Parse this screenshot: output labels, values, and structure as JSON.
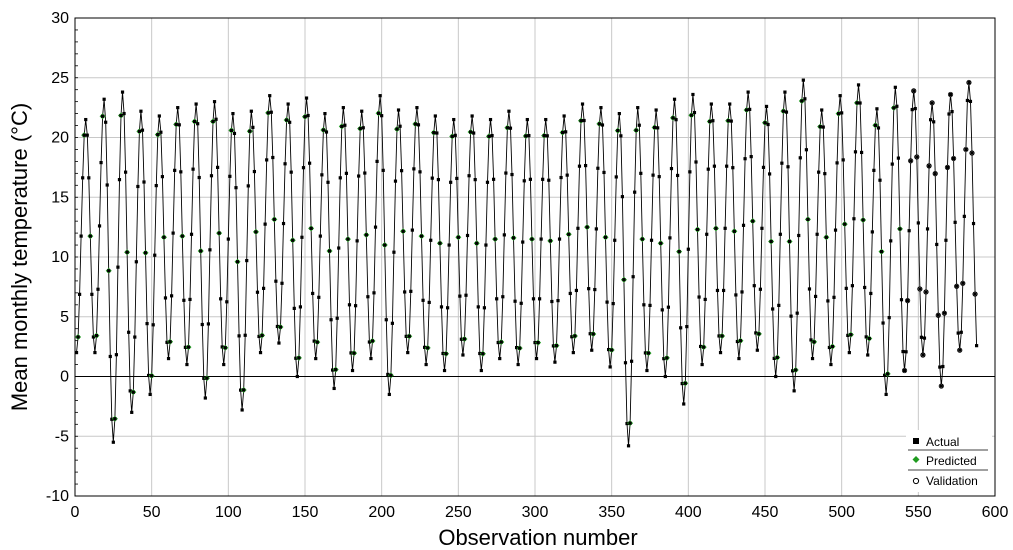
{
  "chart_data": {
    "type": "line",
    "title": "",
    "xlabel": "Observation number",
    "ylabel": "Mean monthly temperature (°C)",
    "xlim": [
      0,
      600
    ],
    "ylim": [
      -10,
      30
    ],
    "x_ticks": [
      0,
      50,
      100,
      150,
      200,
      250,
      300,
      350,
      400,
      450,
      500,
      550,
      600
    ],
    "y_ticks": [
      -10,
      -5,
      0,
      5,
      10,
      15,
      20,
      25,
      30
    ],
    "grid": true,
    "zero_line": true,
    "legend_position": "bottom-right",
    "legend": [
      "Actual",
      "Predicted",
      "Validation"
    ],
    "series_style": [
      {
        "name": "Actual",
        "marker": "filled-square",
        "color": "#000000"
      },
      {
        "name": "Predicted",
        "marker": "filled-diamond",
        "color": "#1f9b1f"
      },
      {
        "name": "Validation",
        "marker": "open-circle",
        "color": "#000000"
      }
    ],
    "predicted_end": 540,
    "series": {
      "cycle_length": 12,
      "start_observation": 1,
      "yearly_max": [
        21.5,
        23.2,
        23.8,
        22.2,
        21.8,
        22.5,
        22.8,
        23.0,
        22.0,
        22.2,
        23.5,
        22.8,
        23.3,
        22.0,
        22.5,
        22.2,
        23.5,
        22.3,
        22.5,
        21.8,
        21.5,
        21.8,
        21.5,
        22.2,
        21.5,
        21.5,
        21.8,
        22.8,
        22.5,
        22.0,
        22.5,
        22.3,
        23.2,
        23.6,
        22.8,
        22.8,
        23.8,
        22.6,
        23.8,
        24.8,
        22.3,
        23.5,
        24.4,
        22.4,
        24.2,
        23.9,
        22.9,
        23.6,
        24.6,
        24.7,
        25.8,
        24.7,
        23.0,
        24.4,
        24.2,
        23.7,
        22.8,
        23.6,
        23.4,
        24.4,
        23.2,
        25.0,
        24.5,
        24.4,
        24.6,
        24.0
      ],
      "yearly_min": [
        2.0,
        2.0,
        -5.5,
        -3.0,
        -1.5,
        1.5,
        1.0,
        -1.8,
        1.0,
        -2.8,
        2.0,
        2.8,
        0.0,
        1.5,
        -1.0,
        0.5,
        1.5,
        -1.5,
        2.0,
        1.0,
        0.5,
        1.8,
        0.5,
        1.5,
        1.0,
        1.5,
        1.2,
        2.0,
        2.2,
        0.8,
        -5.8,
        0.5,
        0.0,
        -2.3,
        1.0,
        2.0,
        1.5,
        2.2,
        0.0,
        -1.2,
        1.5,
        1.0,
        2.0,
        1.8,
        -1.5,
        0.5,
        1.8,
        -0.8,
        2.2,
        1.0,
        -2.0,
        1.5,
        1.0,
        -1.8,
        1.0,
        -2.5,
        0.5,
        3.8,
        1.5,
        -0.5,
        0.5,
        -1.5,
        3.5,
        2.0,
        2.5,
        1.0
      ],
      "peak_month": 7,
      "note_values": "monthly temperatures modelled per year as a seasonal cycle between yearly minimum (January) and yearly maximum (July)"
    }
  }
}
